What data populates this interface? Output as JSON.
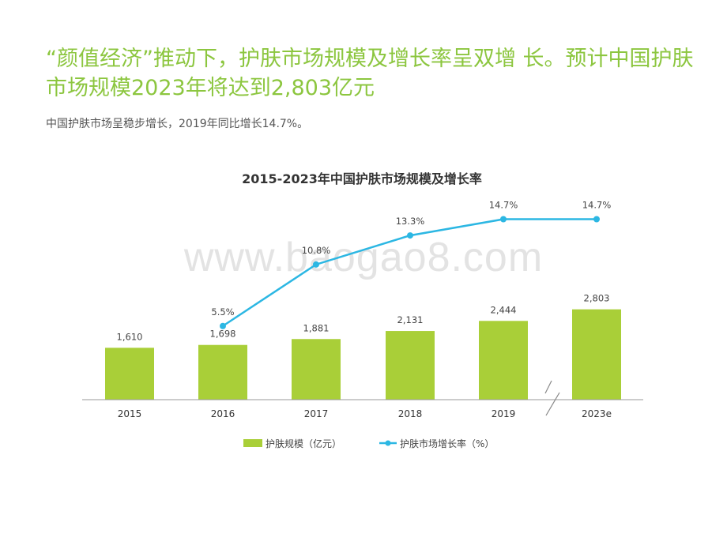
{
  "page": {
    "headline": "“颜值经济”推动下，护肤市场规模及增长率呈双增 长。预计中国护肤市场规模2023年将达到2,803亿元",
    "subtitle": "中国护肤市场呈稳步增长，2019年同比增长14.7%。",
    "watermark": "www.baogao8.com"
  },
  "colors": {
    "headline": "#8cc63f",
    "bar": "#a9cf38",
    "line": "#2cb7e3",
    "axis": "#999999"
  },
  "chart_data": {
    "type": "bar",
    "title": "2015-2023年中国护肤市场规模及增长率",
    "categories": [
      "2015",
      "2016",
      "2017",
      "2018",
      "2019",
      "2023e"
    ],
    "series": [
      {
        "name": "护肤规模（亿元）",
        "type": "bar",
        "values": [
          1610,
          1698,
          1881,
          2131,
          2444,
          2803
        ],
        "labels": [
          "1,610",
          "1,698",
          "1,881",
          "2,131",
          "2,444",
          "2,803"
        ]
      },
      {
        "name": "护肤市场增长率（%）",
        "type": "line",
        "values": [
          null,
          5.5,
          10.8,
          13.3,
          14.7,
          14.7
        ],
        "labels": [
          "",
          "5.5%",
          "10.8%",
          "13.3%",
          "14.7%",
          "14.7%"
        ]
      }
    ],
    "axis_break": "between 2019 and 2023e",
    "legend_position": "bottom",
    "grid": false
  }
}
